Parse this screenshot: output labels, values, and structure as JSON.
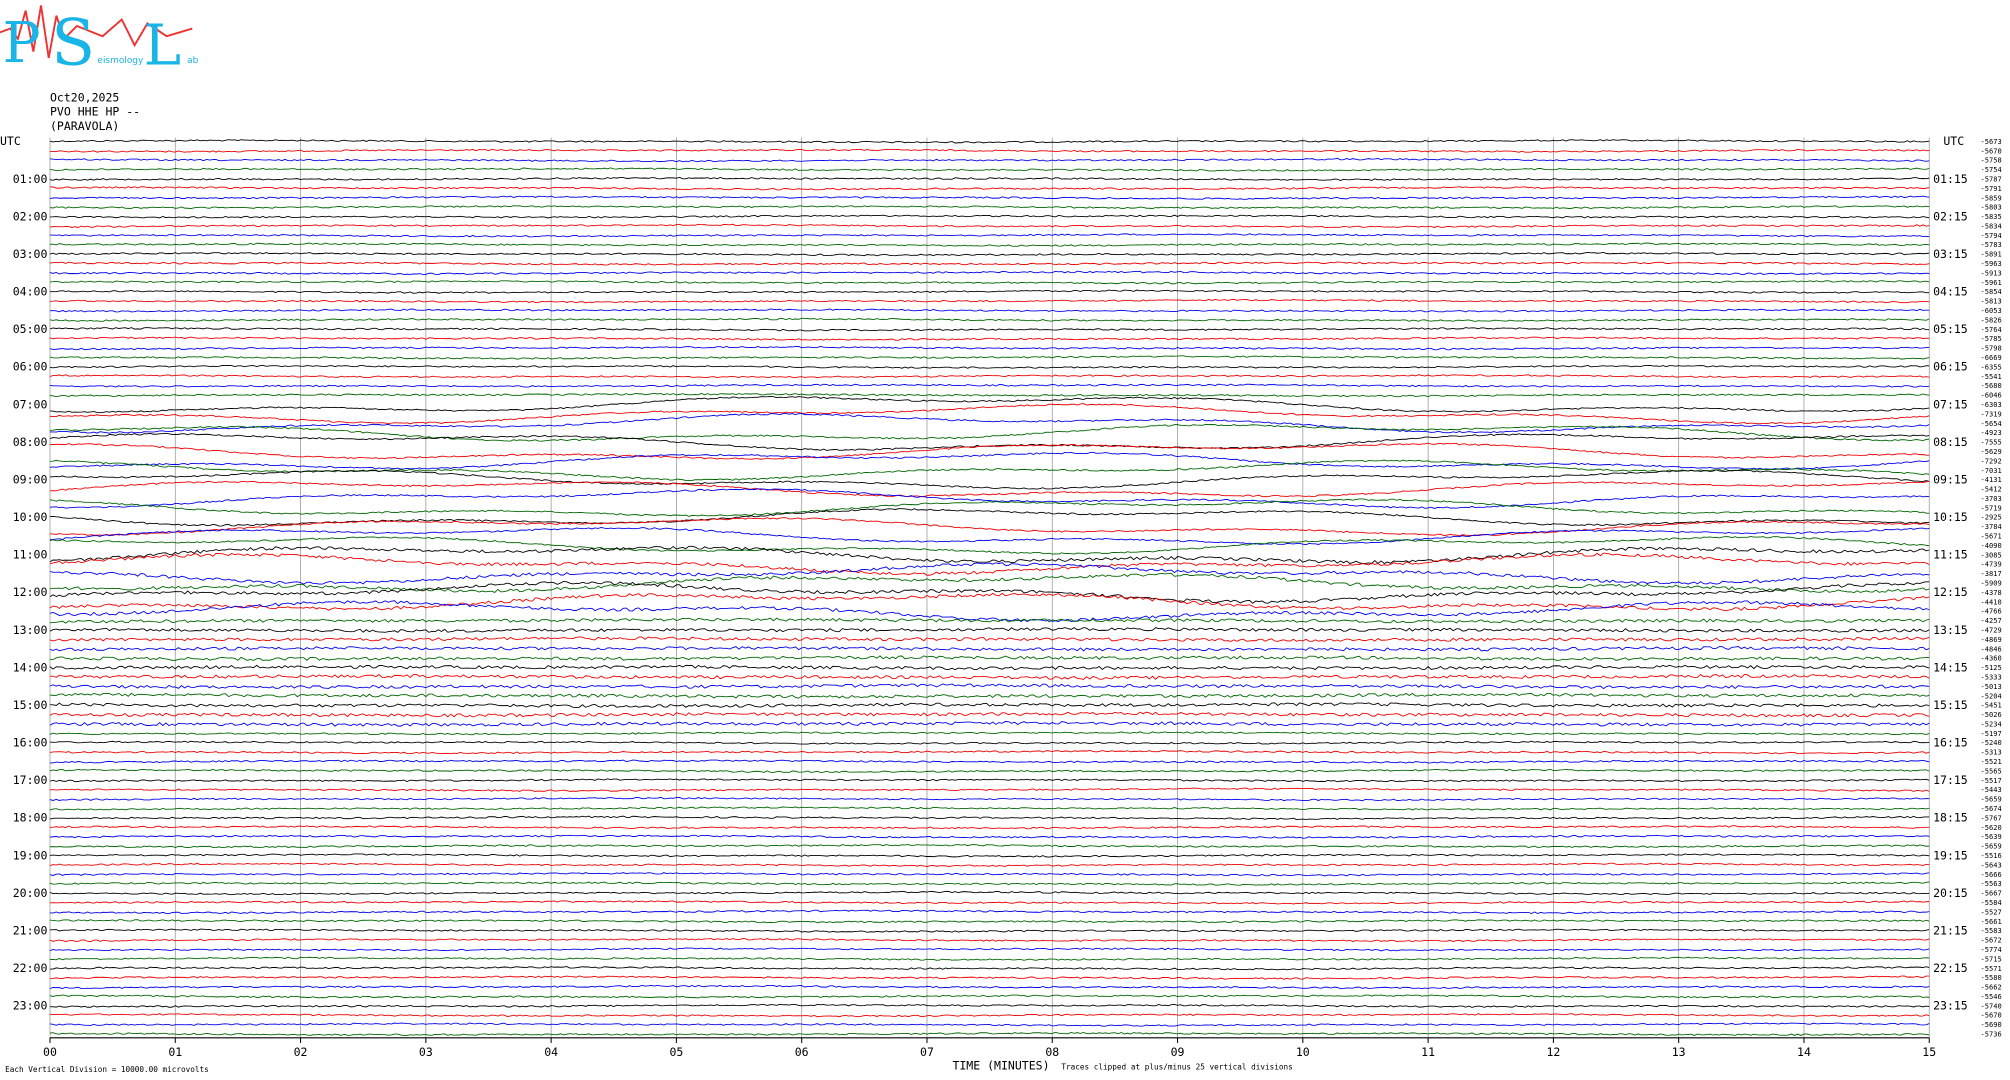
{
  "logo": {
    "letters": [
      "P",
      "S",
      "L"
    ],
    "words": [
      "eismology",
      "ab"
    ]
  },
  "header": {
    "date": "Oct20,2025",
    "station": "PVO HHE HP --",
    "place": "(PARAVOLA)"
  },
  "left_labels": [
    "UTC",
    "01:00",
    "02:00",
    "03:00",
    "04:00",
    "05:00",
    "06:00",
    "07:00",
    "08:00",
    "09:00",
    "10:00",
    "11:00",
    "12:00",
    "13:00",
    "14:00",
    "15:00",
    "16:00",
    "17:00",
    "18:00",
    "19:00",
    "20:00",
    "21:00",
    "22:00",
    "23:00"
  ],
  "right_labels": [
    "UTC",
    "01:15",
    "02:15",
    "03:15",
    "04:15",
    "05:15",
    "06:15",
    "07:15",
    "08:15",
    "09:15",
    "10:15",
    "11:15",
    "12:15",
    "13:15",
    "14:15",
    "15:15",
    "16:15",
    "17:15",
    "18:15",
    "19:15",
    "20:15",
    "21:15",
    "22:15",
    "23:15"
  ],
  "trace_offsets": [
    "-5673",
    "-5670",
    "-5758",
    "-5754",
    "-5787",
    "-5791",
    "-5859",
    "-5803",
    "-5835",
    "-5834",
    "-5794",
    "-5783",
    "-5891",
    "-5963",
    "-5913",
    "-5961",
    "-5854",
    "-5813",
    "-6053",
    "-5826",
    "-5764",
    "-5785",
    "-5798",
    "-6669",
    "-6355",
    "-5541",
    "-5680",
    "-6046",
    "-6303",
    "-7319",
    "-5654",
    "-4923",
    "-7555",
    "-5629",
    "-7292",
    "-7031",
    "-4131",
    "-5412",
    "-3703",
    "-5719",
    "-2925",
    "-3784",
    "-5671",
    "-4090",
    "-3085",
    "-4739",
    "-3817",
    "-5909",
    "-4378",
    "-4410",
    "-4766",
    "-4257",
    "-4729",
    "-4869",
    "-4846",
    "-4360",
    "-5125",
    "-5333",
    "-5013",
    "-5204",
    "-5451",
    "-5026",
    "-5234",
    "-5197",
    "-5240",
    "-5313",
    "-5521",
    "-5565",
    "-5517",
    "-5443",
    "-5659",
    "-5674",
    "-5767",
    "-5620",
    "-5639",
    "-5659",
    "-5516",
    "-5643",
    "-5666",
    "-5563",
    "-5667",
    "-5584",
    "-5527",
    "-5661",
    "-5583",
    "-5672",
    "-5774",
    "-5715",
    "-5571",
    "-5580",
    "-5662",
    "-5546",
    "-5740",
    "-5670",
    "-5690",
    "-5736"
  ],
  "x_ticks": [
    "00",
    "01",
    "02",
    "03",
    "04",
    "05",
    "06",
    "07",
    "08",
    "09",
    "10",
    "11",
    "12",
    "13",
    "14",
    "15"
  ],
  "footer": {
    "scale_note": "Each Vertical Division = 10000.00 microvolts",
    "x_title": "TIME (MINUTES)",
    "clip_note": "Traces clipped at plus/minus 25 vertical divisions"
  }
}
